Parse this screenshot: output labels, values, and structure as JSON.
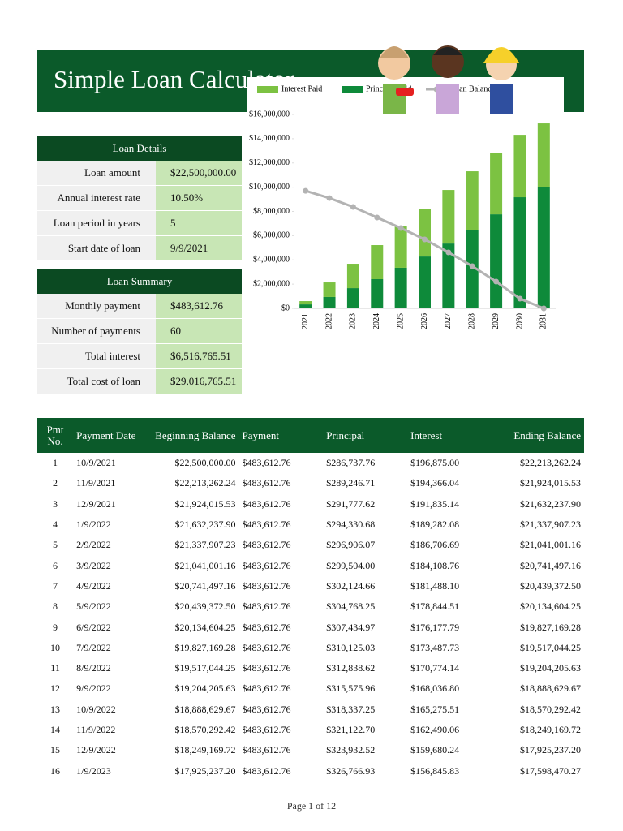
{
  "header": {
    "title": "Simple Loan Calculator"
  },
  "loan_details": {
    "title": "Loan Details",
    "rows": [
      {
        "label": "Loan amount",
        "value": "$22,500,000.00"
      },
      {
        "label": "Annual interest rate",
        "value": "10.50%"
      },
      {
        "label": "Loan period in years",
        "value": "5"
      },
      {
        "label": "Start date of loan",
        "value": "9/9/2021"
      }
    ]
  },
  "loan_summary": {
    "title": "Loan Summary",
    "rows": [
      {
        "label": "Monthly payment",
        "value": "$483,612.76"
      },
      {
        "label": "Number of payments",
        "value": "60"
      },
      {
        "label": "Total interest",
        "value": "$6,516,765.51"
      },
      {
        "label": "Total cost of loan",
        "value": "$29,016,765.51"
      }
    ]
  },
  "chart_data": {
    "type": "bar",
    "stacked": true,
    "categories": [
      "2021",
      "2022",
      "2023",
      "2024",
      "2025",
      "2026",
      "2027",
      "2028",
      "2029",
      "2030",
      "2031"
    ],
    "series": [
      {
        "name": "Interest Paid",
        "color": "#7cc242",
        "values": [
          270000,
          1200000,
          2010000,
          2810000,
          3410000,
          3950000,
          4420000,
          4820000,
          5090000,
          5150000,
          5220000
        ],
        "stack": 1,
        "legend_order": 0
      },
      {
        "name": "Principal Paid",
        "color": "#0e8a3a",
        "values": [
          330000,
          940000,
          1670000,
          2410000,
          3350000,
          4280000,
          5350000,
          6490000,
          7760000,
          9170000,
          10040000
        ],
        "stack": 0,
        "legend_order": 1
      },
      {
        "name": "Loan Balance",
        "color": "#b3b3b3",
        "type": "line",
        "values": [
          9700000,
          9100000,
          8370000,
          7500000,
          6630000,
          5690000,
          4620000,
          3480000,
          2210000,
          800000,
          0
        ],
        "legend_order": 2
      }
    ],
    "ylim": [
      0,
      16000000
    ],
    "yticks": [
      {
        "value": 0,
        "label": "$0"
      },
      {
        "value": 2000000,
        "label": "$2,000,000"
      },
      {
        "value": 4000000,
        "label": "$4,000,000"
      },
      {
        "value": 6000000,
        "label": "$6,000,000"
      },
      {
        "value": 8000000,
        "label": "$8,000,000"
      },
      {
        "value": 10000000,
        "label": "$10,000,000"
      },
      {
        "value": 12000000,
        "label": "$12,000,000"
      },
      {
        "value": 14000000,
        "label": "$14,000,000"
      },
      {
        "value": 16000000,
        "label": "$16,000,000"
      }
    ],
    "legend": "top"
  },
  "table": {
    "columns": [
      "Pmt No.",
      "Payment Date",
      "Beginning Balance",
      "Payment",
      "Principal",
      "Interest",
      "Ending Balance"
    ],
    "rows": [
      [
        "1",
        "10/9/2021",
        "$22,500,000.00",
        "$483,612.76",
        "$286,737.76",
        "$196,875.00",
        "$22,213,262.24"
      ],
      [
        "2",
        "11/9/2021",
        "$22,213,262.24",
        "$483,612.76",
        "$289,246.71",
        "$194,366.04",
        "$21,924,015.53"
      ],
      [
        "3",
        "12/9/2021",
        "$21,924,015.53",
        "$483,612.76",
        "$291,777.62",
        "$191,835.14",
        "$21,632,237.90"
      ],
      [
        "4",
        "1/9/2022",
        "$21,632,237.90",
        "$483,612.76",
        "$294,330.68",
        "$189,282.08",
        "$21,337,907.23"
      ],
      [
        "5",
        "2/9/2022",
        "$21,337,907.23",
        "$483,612.76",
        "$296,906.07",
        "$186,706.69",
        "$21,041,001.16"
      ],
      [
        "6",
        "3/9/2022",
        "$21,041,001.16",
        "$483,612.76",
        "$299,504.00",
        "$184,108.76",
        "$20,741,497.16"
      ],
      [
        "7",
        "4/9/2022",
        "$20,741,497.16",
        "$483,612.76",
        "$302,124.66",
        "$181,488.10",
        "$20,439,372.50"
      ],
      [
        "8",
        "5/9/2022",
        "$20,439,372.50",
        "$483,612.76",
        "$304,768.25",
        "$178,844.51",
        "$20,134,604.25"
      ],
      [
        "9",
        "6/9/2022",
        "$20,134,604.25",
        "$483,612.76",
        "$307,434.97",
        "$176,177.79",
        "$19,827,169.28"
      ],
      [
        "10",
        "7/9/2022",
        "$19,827,169.28",
        "$483,612.76",
        "$310,125.03",
        "$173,487.73",
        "$19,517,044.25"
      ],
      [
        "11",
        "8/9/2022",
        "$19,517,044.25",
        "$483,612.76",
        "$312,838.62",
        "$170,774.14",
        "$19,204,205.63"
      ],
      [
        "12",
        "9/9/2022",
        "$19,204,205.63",
        "$483,612.76",
        "$315,575.96",
        "$168,036.80",
        "$18,888,629.67"
      ],
      [
        "13",
        "10/9/2022",
        "$18,888,629.67",
        "$483,612.76",
        "$318,337.25",
        "$165,275.51",
        "$18,570,292.42"
      ],
      [
        "14",
        "11/9/2022",
        "$18,570,292.42",
        "$483,612.76",
        "$321,122.70",
        "$162,490.06",
        "$18,249,169.72"
      ],
      [
        "15",
        "12/9/2022",
        "$18,249,169.72",
        "$483,612.76",
        "$323,932.52",
        "$159,680.24",
        "$17,925,237.20"
      ],
      [
        "16",
        "1/9/2023",
        "$17,925,237.20",
        "$483,612.76",
        "$326,766.93",
        "$156,845.83",
        "$17,598,470.27"
      ]
    ]
  },
  "footer": {
    "page": "Page 1 of 12"
  }
}
